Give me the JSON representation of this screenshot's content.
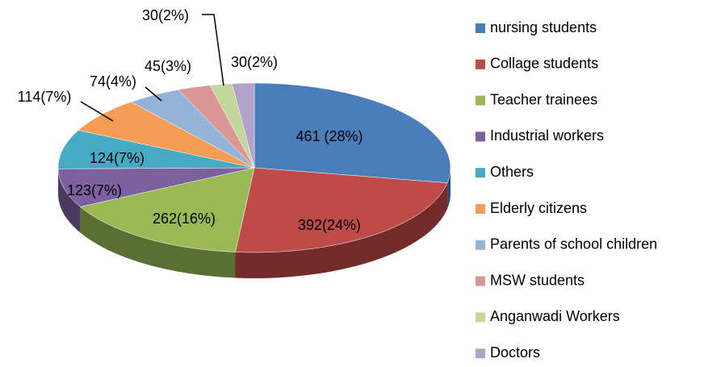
{
  "chart_data": {
    "type": "pie",
    "categories": [
      "nursing students",
      "Collage students",
      "Teacher trainees",
      "Industrial workers",
      "Others",
      "Elderly citizens",
      "Parents of school children",
      "MSW students",
      "Anganwadi Workers",
      "Doctors"
    ],
    "values": [
      461,
      392,
      262,
      123,
      124,
      114,
      74,
      45,
      30,
      30
    ],
    "value_labels": [
      "461 (28%)",
      "392(24%)",
      "262(16%)",
      "123(7%)",
      "124(7%)",
      "114(7%)",
      "74(4%)",
      "45(3%)",
      "30(2%)",
      "30(2%)"
    ],
    "colors": [
      "#4a7ebb",
      "#be4b48",
      "#98b954",
      "#7d60a0",
      "#46aac5",
      "#f59d56",
      "#95b3d7",
      "#d99694",
      "#c3d69b",
      "#b3a2c7"
    ],
    "legend": "right"
  }
}
